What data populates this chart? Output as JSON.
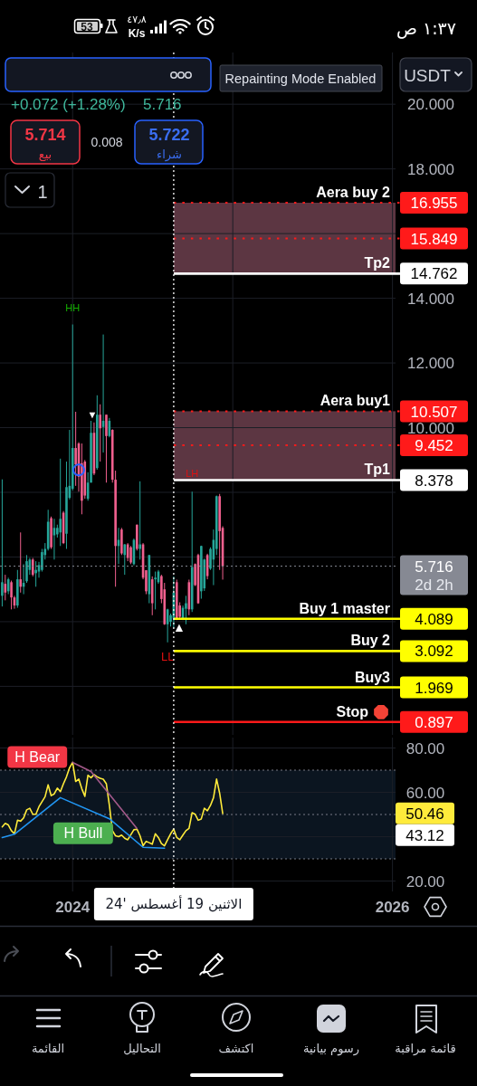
{
  "chart_data": [
    {
      "type": "candlestick",
      "x": [
        "2023-07-24",
        "2023-07-31",
        "2023-08-07",
        "2023-08-14",
        "2023-08-21",
        "2023-08-28",
        "2023-09-04",
        "2023-09-11",
        "2023-09-18",
        "2023-09-25",
        "2023-10-02",
        "2023-10-09",
        "2023-10-16",
        "2023-10-23",
        "2023-10-30",
        "2023-11-06",
        "2023-11-13",
        "2023-11-20",
        "2023-11-27",
        "2023-12-04",
        "2023-12-11",
        "2023-12-18",
        "2023-12-25",
        "2024-01-01",
        "2024-01-08",
        "2024-01-15",
        "2024-01-22",
        "2024-01-29",
        "2024-02-05",
        "2024-02-12",
        "2024-02-19",
        "2024-02-26",
        "2024-03-04",
        "2024-03-11",
        "2024-03-18",
        "2024-03-25",
        "2024-04-01",
        "2024-04-08",
        "2024-04-15",
        "2024-04-22",
        "2024-04-29",
        "2024-05-06",
        "2024-05-13",
        "2024-05-20",
        "2024-05-27",
        "2024-06-03",
        "2024-06-10",
        "2024-06-17",
        "2024-06-24",
        "2024-07-01",
        "2024-07-08",
        "2024-07-15",
        "2024-07-22",
        "2024-07-29",
        "2024-08-05",
        "2024-08-12",
        "2024-08-19",
        "2024-08-26",
        "2024-09-02",
        "2024-09-09",
        "2024-09-16",
        "2024-09-23",
        "2024-09-30",
        "2024-10-07",
        "2024-10-14",
        "2024-10-21",
        "2024-10-28",
        "2024-11-04",
        "2024-11-11",
        "2024-11-18",
        "2024-11-25",
        "2024-12-02",
        "2024-12-09"
      ],
      "ohlc": [
        [
          4.8,
          8.4,
          4.47,
          5.22
        ],
        [
          5.17,
          5.45,
          4.66,
          4.9
        ],
        [
          4.94,
          5.36,
          4.85,
          5.31
        ],
        [
          5.22,
          5.27,
          4.38,
          4.75
        ],
        [
          4.75,
          4.8,
          4.4,
          4.5
        ],
        [
          4.5,
          5.6,
          4.43,
          5.31
        ],
        [
          5.31,
          6.76,
          4.9,
          5.08
        ],
        [
          5.08,
          5.78,
          4.85,
          5.2
        ],
        [
          5.25,
          6.06,
          5.2,
          5.87
        ],
        [
          5.6,
          5.97,
          5.45,
          5.92
        ],
        [
          5.92,
          5.97,
          5.4,
          5.45
        ],
        [
          5.5,
          5.87,
          5.08,
          5.6
        ],
        [
          5.55,
          5.85,
          5.36,
          5.75
        ],
        [
          5.6,
          6.25,
          5.55,
          6.15
        ],
        [
          6.06,
          6.43,
          5.92,
          6.25
        ],
        [
          6.25,
          7.46,
          6.2,
          7.09
        ],
        [
          7.2,
          7.25,
          6.25,
          6.3
        ],
        [
          6.67,
          7.18,
          5.92,
          6.9
        ],
        [
          6.7,
          7.0,
          6.6,
          6.9
        ],
        [
          6.76,
          9.04,
          6.34,
          7.18
        ],
        [
          7.37,
          7.42,
          6.4,
          6.43
        ],
        [
          6.72,
          8.95,
          6.25,
          8.16
        ],
        [
          7.83,
          9.93,
          7.78,
          8.2
        ],
        [
          8.11,
          13.19,
          8.06,
          9.37
        ],
        [
          9.37,
          10.49,
          8.2,
          8.86
        ],
        [
          9.51,
          9.55,
          8.02,
          8.48
        ],
        [
          8.9,
          9.51,
          7.32,
          7.74
        ],
        [
          8.95,
          9.0,
          7.8,
          7.9
        ],
        [
          7.8,
          8.62,
          7.74,
          8.3
        ],
        [
          8.3,
          10.21,
          8.3,
          9.84
        ],
        [
          9.84,
          10.16,
          8.53,
          8.58
        ],
        [
          8.75,
          11.0,
          8.7,
          10.4
        ],
        [
          10.4,
          10.72,
          8.95,
          9.98
        ],
        [
          10.02,
          12.88,
          9.23,
          10.21
        ],
        [
          10.4,
          10.4,
          8.3,
          9.74
        ],
        [
          9.74,
          10.3,
          9.7,
          10.21
        ],
        [
          9.93,
          9.95,
          8.3,
          8.39
        ],
        [
          8.39,
          8.67,
          5.08,
          6.34
        ],
        [
          6.34,
          6.9,
          5.78,
          6.53
        ],
        [
          6.85,
          6.9,
          6.06,
          6.11
        ],
        [
          6.06,
          6.4,
          5.45,
          6.39
        ],
        [
          6.39,
          6.43,
          5.87,
          5.97
        ],
        [
          6.3,
          6.34,
          5.78,
          5.83
        ],
        [
          5.78,
          6.57,
          5.74,
          6.53
        ],
        [
          7.0,
          7.0,
          6.2,
          6.25
        ],
        [
          6.25,
          8.34,
          5.92,
          6.39
        ],
        [
          6.39,
          6.43,
          5.31,
          5.36
        ],
        [
          5.59,
          5.59,
          4.85,
          4.94
        ],
        [
          4.85,
          6.06,
          4.57,
          6.06
        ],
        [
          5.31,
          5.4,
          4.2,
          4.57
        ],
        [
          5.31,
          5.55,
          4.38,
          5.36
        ],
        [
          5.22,
          5.6,
          5.17,
          5.55
        ],
        [
          5.41,
          5.45,
          4.57,
          4.7
        ],
        [
          5.0,
          5.2,
          3.9,
          3.92
        ],
        [
          3.92,
          4.4,
          3.36,
          4.38
        ],
        [
          4.0,
          4.25,
          3.85,
          4.2
        ],
        [
          4.1,
          5.4,
          3.8,
          4.9
        ],
        [
          5.22,
          5.3,
          4.05,
          4.1
        ],
        [
          4.5,
          4.6,
          4.1,
          4.15
        ],
        [
          4.1,
          4.5,
          4.05,
          4.43
        ],
        [
          4.4,
          4.8,
          3.92,
          4.57
        ],
        [
          5.22,
          5.3,
          4.2,
          4.38
        ],
        [
          4.38,
          8.02,
          4.3,
          5.69
        ],
        [
          5.78,
          5.8,
          5.1,
          5.13
        ],
        [
          6.06,
          6.1,
          4.55,
          4.57
        ],
        [
          4.94,
          6.35,
          4.71,
          6.34
        ],
        [
          5.03,
          5.95,
          4.95,
          5.92
        ],
        [
          6.06,
          6.1,
          5.31,
          5.41
        ],
        [
          5.64,
          6.3,
          5.6,
          6.25
        ],
        [
          5.92,
          6.85,
          5.13,
          6.53
        ],
        [
          6.25,
          7.9,
          6.06,
          7.88
        ],
        [
          7.88,
          7.95,
          5.6,
          6.8
        ],
        [
          6.9,
          6.95,
          5.3,
          5.716
        ]
      ],
      "series": [
        {
          "type": "scatter",
          "x": [
            "2024-01-15"
          ],
          "values": [
            8.69
          ],
          "color": "#2962ff"
        }
      ],
      "marker": "circle",
      "xlim": [
        "2023-07-19",
        "2026-01-08"
      ],
      "xticks": [
        {
          "value": "2024-01-01",
          "label": null
        },
        {
          "value": "2025-01-01",
          "label": null
        },
        {
          "value": "2026-01-01",
          "label": null
        }
      ],
      "ylim": [
        0.5,
        21.6
      ],
      "yticks": [
        {
          "value": 2,
          "label": null
        },
        {
          "value": 4,
          "label": null
        },
        {
          "value": 6,
          "label": null
        },
        {
          "value": 8,
          "label": null
        },
        {
          "value": 10,
          "label": "10.000"
        },
        {
          "value": 12,
          "label": "12.000"
        },
        {
          "value": 14,
          "label": "14.000"
        },
        {
          "value": 16,
          "label": null
        },
        {
          "value": 18,
          "label": "18.000"
        },
        {
          "value": 20,
          "label": "20.000"
        }
      ],
      "tick_labels": "y",
      "grid": true,
      "bands": [
        {
          "axis": "y",
          "from": 14.762,
          "to": 16.955,
          "color": "#5c3642"
        },
        {
          "axis": "y",
          "from": 8.378,
          "to": 10.507,
          "color": "#5c3642"
        }
      ],
      "ref_lines": [
        {
          "axis": "y",
          "value": 16.955,
          "label": "16.955",
          "color": "#ff1a1a",
          "line_style": "dotted"
        },
        {
          "axis": "y",
          "value": 15.849,
          "label": "15.849",
          "color": "#ff1a1a",
          "line_style": "dotted"
        },
        {
          "axis": "y",
          "value": 14.762,
          "label": "14.762",
          "color": "#ffffff",
          "line_style": "solid"
        },
        {
          "axis": "y",
          "value": 10.507,
          "label": "10.507",
          "color": "#ff1a1a",
          "line_style": "dotted"
        },
        {
          "axis": "y",
          "value": 9.452,
          "label": "9.452",
          "color": "#ff1a1a",
          "line_style": "dotted"
        },
        {
          "axis": "y",
          "value": 8.378,
          "label": "8.378",
          "color": "#ffffff",
          "line_style": "solid"
        },
        {
          "axis": "y",
          "value": 5.716,
          "label": "5.716",
          "color": "#868993",
          "line_style": "dotted"
        },
        {
          "axis": "y",
          "value": 4.089,
          "label": "4.089",
          "color": "#ffff00",
          "line_style": "solid"
        },
        {
          "axis": "y",
          "value": 3.092,
          "label": "3.092",
          "color": "#ffff00",
          "line_style": "solid"
        },
        {
          "axis": "y",
          "value": 1.969,
          "label": "1.969",
          "color": "#ffff00",
          "line_style": "solid"
        },
        {
          "axis": "y",
          "value": 0.897,
          "label": "0.897",
          "color": "#ff1a1a",
          "line_style": "solid"
        },
        {
          "axis": "x",
          "value": "2024-08-19",
          "color": "#ffffff",
          "line_style": "dotted"
        }
      ],
      "annotations": [
        {
          "text": "HH",
          "x": "2024-01-01",
          "y": 13.19
        },
        {
          "text": "LH",
          "x": "2024-09-30",
          "y": 8.02
        },
        {
          "text": "LL",
          "x": "2024-08-05",
          "y": 3.36
        },
        {
          "text": "▼",
          "x": "2024-02-19",
          "y": 10.16
        },
        {
          "text": "▲",
          "x": "2024-08-19",
          "y": 4.1
        },
        {
          "text": "Aera buy 2",
          "y": 16.955
        },
        {
          "text": "Tp2",
          "y": 14.762
        },
        {
          "text": "Aera buy1",
          "y": 10.507
        },
        {
          "text": "Tp1",
          "y": 8.378
        },
        "2d 2h",
        {
          "text": "Buy 1 master",
          "y": 4.089
        },
        {
          "text": "Buy 2",
          "y": 3.092
        },
        {
          "text": "Buy3",
          "y": 1.969
        },
        {
          "text": "Stop",
          "y": 0.897
        }
      ]
    },
    {
      "type": "line",
      "x": [
        "2023-07-24",
        "2023-07-31",
        "2023-08-07",
        "2023-08-14",
        "2023-08-21",
        "2023-08-28",
        "2023-09-04",
        "2023-09-11",
        "2023-09-18",
        "2023-09-25",
        "2023-10-02",
        "2023-10-09",
        "2023-10-16",
        "2023-10-23",
        "2023-10-30",
        "2023-11-06",
        "2023-11-13",
        "2023-11-20",
        "2023-11-27",
        "2023-12-04",
        "2023-12-11",
        "2023-12-18",
        "2023-12-25",
        "2024-01-01",
        "2024-01-08",
        "2024-01-15",
        "2024-01-22",
        "2024-01-29",
        "2024-02-05",
        "2024-02-12",
        "2024-02-19",
        "2024-02-26",
        "2024-03-04",
        "2024-03-11",
        "2024-03-18",
        "2024-03-25",
        "2024-04-01",
        "2024-04-08",
        "2024-04-15",
        "2024-04-22",
        "2024-04-29",
        "2024-05-06",
        "2024-05-13",
        "2024-05-20",
        "2024-05-27",
        "2024-06-03",
        "2024-06-10",
        "2024-06-17",
        "2024-06-24",
        "2024-07-01",
        "2024-07-08",
        "2024-07-15",
        "2024-07-22",
        "2024-07-29",
        "2024-08-05",
        "2024-08-12",
        "2024-08-19",
        "2024-08-26",
        "2024-09-02",
        "2024-09-09",
        "2024-09-16",
        "2024-09-23",
        "2024-09-30",
        "2024-10-07",
        "2024-10-14",
        "2024-10-21",
        "2024-10-28",
        "2024-11-04",
        "2024-11-11",
        "2024-11-18",
        "2024-11-25",
        "2024-12-02",
        "2024-12-09"
      ],
      "series": [
        {
          "color": "#ffeb3b",
          "values": [
            44.4,
            46.0,
            45.3,
            42.7,
            41.3,
            47.4,
            47.0,
            48.5,
            52.1,
            52.8,
            50.1,
            50.1,
            53.5,
            55.8,
            58.0,
            63.4,
            58.5,
            59.3,
            61.9,
            60.3,
            63.9,
            67.0,
            71.1,
            73.5,
            64.9,
            66.0,
            61.6,
            58.2,
            67.7,
            66.6,
            68.0,
            67.0,
            66.3,
            65.9,
            63.9,
            54.1,
            42.7,
            40.4,
            40.0,
            40.7,
            39.3,
            38.6,
            40.9,
            43.1,
            43.4,
            40.4,
            35.9,
            37.9,
            37.3,
            36.6,
            41.3,
            39.6,
            36.9,
            35.9,
            38.6,
            41.3,
            43.4,
            39.6,
            38.6,
            40.7,
            42.7,
            43.7,
            50.8,
            50.1,
            47.4,
            48.0,
            52.8,
            51.7,
            54.1,
            57.6,
            66.0,
            59.6,
            50.46
          ]
        },
        {
          "color": "#2196f3",
          "x": [
            "2023-07-24",
            "2023-08-21",
            "2023-12-04",
            "2024-03-25",
            "2024-06-10",
            "2024-07-29"
          ],
          "values": [
            39.6,
            41.1,
            57.6,
            48.1,
            35.2,
            34.8
          ]
        },
        {
          "color": "#a3598a",
          "x": [
            "2024-01-01",
            "2024-02-12",
            "2024-05-27"
          ],
          "values": [
            73.5,
            69.4,
            43.7
          ]
        }
      ],
      "xlim": [
        "2023-07-19",
        "2026-01-08"
      ],
      "xticks": [
        {
          "value": "2024-01-01",
          "label": "2024"
        },
        {
          "value": "2025-01-01",
          "label": null
        },
        {
          "value": "2026-01-01",
          "label": "2026"
        }
      ],
      "ylim": [
        15.3,
        84.7
      ],
      "yticks": [
        {
          "value": 20,
          "label": "20.00"
        },
        {
          "value": 40,
          "label": null
        },
        {
          "value": 60,
          "label": "60.00"
        },
        {
          "value": 80,
          "label": "80.00"
        }
      ],
      "grid": true,
      "bands": [
        {
          "axis": "y",
          "from": 30,
          "to": 70,
          "color": "#0b1520"
        }
      ],
      "ref_lines": [
        {
          "axis": "y",
          "value": 70,
          "color": "#787b86",
          "line_style": "dotted"
        },
        {
          "axis": "y",
          "value": 50,
          "color": "#787b86",
          "line_style": "dotted"
        },
        {
          "axis": "y",
          "value": 30,
          "color": "#787b86",
          "line_style": "dotted"
        },
        {
          "axis": "x",
          "value": "2024-08-19",
          "label": "الاثنين 19 أغسطس '24",
          "color": "#ffffff",
          "line_style": "dotted"
        }
      ],
      "annotations": [
        {
          "text": "H Bear",
          "x": "2024-01-01",
          "y": 73.5
        },
        {
          "text": "H Bull",
          "x": "2024-03-25",
          "y": 48.1
        },
        "50.46",
        "43.12"
      ]
    },
    {
      "type": "other",
      "annotations": [
        "١:٣٧ ص",
        "53",
        "٤٧٫٨",
        "K/s",
        "Repainting Mode Enabled",
        "USDT",
        "+0.072 (+1.28%)",
        "5.716",
        "5.714",
        "بيع",
        "0.008",
        "5.722",
        "شراء",
        "1",
        "قائمة مراقبة",
        "رسوم بيانية",
        "اكتشف",
        "التحاليل",
        "القائمة"
      ]
    }
  ]
}
